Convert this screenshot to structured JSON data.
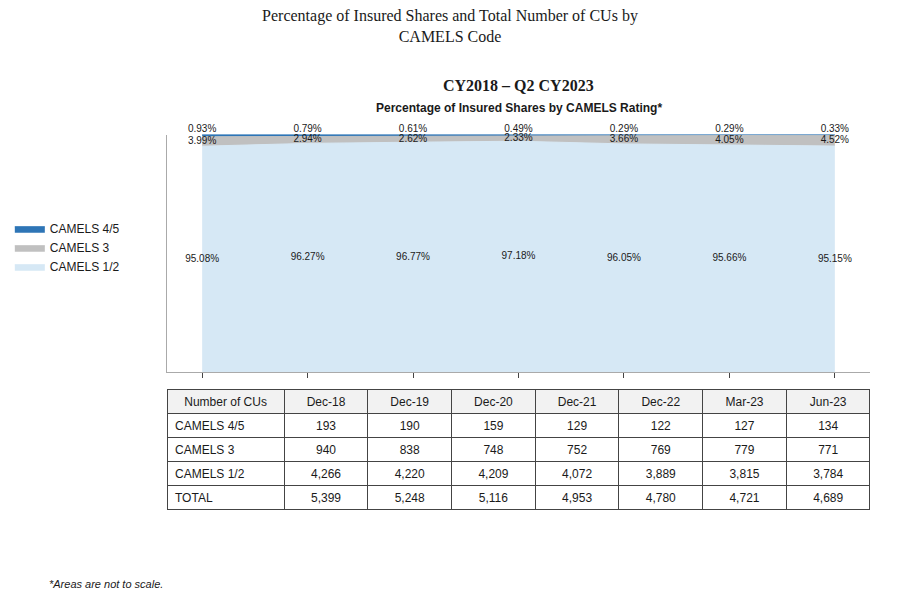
{
  "chart_data": {
    "type": "area",
    "stacked": true,
    "title": "Percentage of Insured Shares and Total Number of CUs by\nCAMELS Code",
    "subtitle": "CY2018 – Q2 CY2023",
    "annotations": [
      "Percentage of Insured Shares by CAMELS Rating*",
      "*Areas are not to scale."
    ],
    "categories": [
      "Dec-18",
      "Dec-19",
      "Dec-20",
      "Dec-21",
      "Dec-22",
      "Mar-23",
      "Jun-23"
    ],
    "series": [
      {
        "name": "CAMELS 1/2",
        "color": "#D6E8F5",
        "values": [
          95.08,
          96.27,
          96.77,
          97.18,
          96.05,
          95.66,
          95.15
        ],
        "value_labels": [
          "95.08%",
          "96.27%",
          "96.77%",
          "97.18%",
          "96.05%",
          "95.66%",
          "95.15%"
        ]
      },
      {
        "name": "CAMELS 3",
        "color": "#C0C0C0",
        "values": [
          3.99,
          2.94,
          2.62,
          2.33,
          3.66,
          4.05,
          4.52
        ],
        "value_labels": [
          "3.99%",
          "2.94%",
          "2.62%",
          "2.33%",
          "3.66%",
          "4.05%",
          "4.52%"
        ]
      },
      {
        "name": "CAMELS 4/5",
        "color": "#2E75B6",
        "values": [
          0.93,
          0.79,
          0.61,
          0.49,
          0.29,
          0.29,
          0.33
        ],
        "value_labels": [
          "0.93%",
          "0.79%",
          "0.61%",
          "0.49%",
          "0.29%",
          "0.29%",
          "0.33%"
        ]
      }
    ],
    "ylim": [
      0,
      100
    ],
    "grid": false,
    "legend": "left",
    "data_labels": true,
    "tick_labels": false,
    "table": {
      "title": "Number of CUs",
      "rows": [
        [
          "CAMELS 4/5",
          "193",
          "190",
          "159",
          "129",
          "122",
          "127",
          "134"
        ],
        [
          "CAMELS 3",
          "940",
          "838",
          "748",
          "752",
          "769",
          "779",
          "771"
        ],
        [
          "CAMELS 1/2",
          "4,266",
          "4,220",
          "4,209",
          "4,072",
          "3,889",
          "3,815",
          "3,784"
        ],
        [
          "TOTAL",
          "5,399",
          "5,248",
          "5,116",
          "4,953",
          "4,780",
          "4,721",
          "4,689"
        ]
      ]
    }
  }
}
